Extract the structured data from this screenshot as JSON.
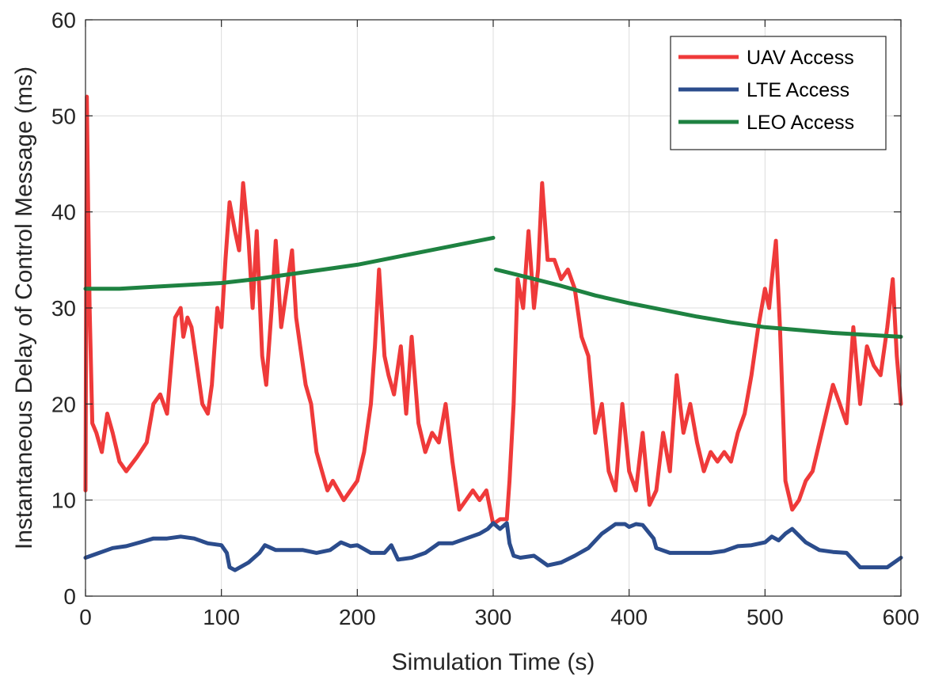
{
  "chart_data": {
    "type": "line",
    "title": "",
    "xlabel": "Simulation Time (s)",
    "ylabel": "Instantaneous Delay of Control Message (ms)",
    "xlim": [
      0,
      600
    ],
    "ylim": [
      0,
      60
    ],
    "xticks": [
      0,
      100,
      200,
      300,
      400,
      500,
      600
    ],
    "yticks": [
      0,
      10,
      20,
      30,
      40,
      50,
      60
    ],
    "xtick_labels": [
      "0",
      "100",
      "200",
      "300",
      "400",
      "500",
      "600"
    ],
    "ytick_labels": [
      "0",
      "10",
      "20",
      "30",
      "40",
      "50",
      "60"
    ],
    "grid": true,
    "legend_position": "top-right",
    "series": [
      {
        "name": "UAV Access",
        "color": "#ef3a3a",
        "x": [
          0,
          1,
          2,
          3,
          5,
          8,
          12,
          16,
          20,
          25,
          30,
          38,
          45,
          50,
          55,
          60,
          63,
          66,
          70,
          72,
          75,
          78,
          82,
          86,
          90,
          93,
          97,
          100,
          103,
          106,
          110,
          113,
          116,
          120,
          123,
          126,
          130,
          133,
          137,
          140,
          144,
          148,
          152,
          155,
          158,
          162,
          166,
          170,
          174,
          178,
          182,
          186,
          190,
          195,
          200,
          205,
          210,
          213,
          216,
          220,
          223,
          227,
          232,
          236,
          240,
          245,
          250,
          255,
          260,
          265,
          270,
          275,
          280,
          285,
          290,
          295,
          300,
          305,
          310,
          312,
          315,
          318,
          322,
          326,
          330,
          333,
          336,
          340,
          345,
          350,
          355,
          360,
          365,
          370,
          375,
          380,
          385,
          390,
          395,
          400,
          405,
          410,
          415,
          420,
          425,
          430,
          435,
          440,
          445,
          450,
          455,
          460,
          465,
          470,
          475,
          480,
          485,
          490,
          495,
          500,
          503,
          505,
          508,
          511,
          515,
          520,
          525,
          530,
          535,
          540,
          545,
          550,
          555,
          560,
          565,
          570,
          575,
          580,
          585,
          590,
          594,
          597,
          600
        ],
        "y": [
          11,
          52,
          40,
          30,
          18,
          17,
          15,
          19,
          17,
          14,
          13,
          14.5,
          16,
          20,
          21,
          19,
          24,
          29,
          30,
          27,
          29,
          28,
          24,
          20,
          19,
          22,
          30,
          28,
          35,
          41,
          38,
          36,
          43,
          37,
          30,
          38,
          25,
          22,
          30,
          37,
          28,
          32,
          36,
          29,
          26,
          22,
          20,
          15,
          13,
          11,
          12,
          11,
          10,
          11,
          12,
          15,
          20,
          26,
          34,
          25,
          23,
          21,
          26,
          19,
          27,
          18,
          15,
          17,
          16,
          20,
          14,
          9,
          10,
          11,
          10,
          11,
          7.5,
          8,
          8,
          12,
          20,
          33,
          30,
          38,
          30,
          34,
          43,
          35,
          35,
          33,
          34,
          32,
          27,
          25,
          17,
          20,
          13,
          11,
          20,
          13,
          11,
          17,
          9.5,
          11,
          17,
          13,
          23,
          17,
          20,
          16,
          13,
          15,
          14,
          15,
          14,
          17,
          19,
          23,
          28,
          32,
          30,
          33,
          37,
          28,
          12,
          9,
          10,
          12,
          13,
          16,
          19,
          22,
          20,
          18,
          28,
          20,
          26,
          24,
          23,
          28,
          33,
          25,
          20
        ]
      },
      {
        "name": "LTE Access",
        "color": "#2b4c8c",
        "x": [
          0,
          10,
          20,
          30,
          40,
          50,
          60,
          70,
          80,
          90,
          100,
          104,
          106,
          110,
          120,
          128,
          132,
          140,
          150,
          160,
          170,
          180,
          188,
          195,
          200,
          210,
          220,
          225,
          230,
          240,
          250,
          260,
          270,
          280,
          290,
          296,
          300,
          305,
          310,
          312,
          315,
          320,
          330,
          340,
          350,
          360,
          370,
          380,
          390,
          397,
          400,
          405,
          410,
          418,
          420,
          430,
          440,
          450,
          460,
          470,
          480,
          490,
          500,
          505,
          510,
          515,
          520,
          530,
          540,
          550,
          560,
          570,
          580,
          590,
          600
        ],
        "y": [
          4,
          4.5,
          5,
          5.2,
          5.6,
          6,
          6,
          6.2,
          6,
          5.5,
          5.3,
          4.5,
          3,
          2.7,
          3.5,
          4.5,
          5.3,
          4.8,
          4.8,
          4.8,
          4.5,
          4.8,
          5.6,
          5.2,
          5.3,
          4.5,
          4.5,
          5.3,
          3.8,
          4,
          4.5,
          5.5,
          5.5,
          6,
          6.5,
          7,
          7.6,
          7,
          7.6,
          5.5,
          4.2,
          4,
          4.2,
          3.2,
          3.5,
          4.2,
          5,
          6.5,
          7.5,
          7.5,
          7.2,
          7.5,
          7.4,
          6,
          5,
          4.5,
          4.5,
          4.5,
          4.5,
          4.7,
          5.2,
          5.3,
          5.6,
          6.2,
          5.8,
          6.5,
          7,
          5.6,
          4.8,
          4.6,
          4.5,
          3,
          3,
          3,
          4
        ]
      },
      {
        "name": "LEO Access",
        "color": "#1e8241",
        "x": [
          0,
          25,
          50,
          75,
          100,
          125,
          150,
          175,
          200,
          225,
          250,
          275,
          300,
          null,
          302,
          325,
          350,
          375,
          400,
          425,
          450,
          475,
          500,
          525,
          550,
          575,
          600
        ],
        "y": [
          32,
          32,
          32.2,
          32.4,
          32.6,
          33,
          33.5,
          34,
          34.5,
          35.2,
          35.9,
          36.6,
          37.3,
          null,
          34,
          33.2,
          32.3,
          31.3,
          30.5,
          29.8,
          29.1,
          28.5,
          28,
          27.7,
          27.4,
          27.2,
          27
        ]
      }
    ]
  }
}
